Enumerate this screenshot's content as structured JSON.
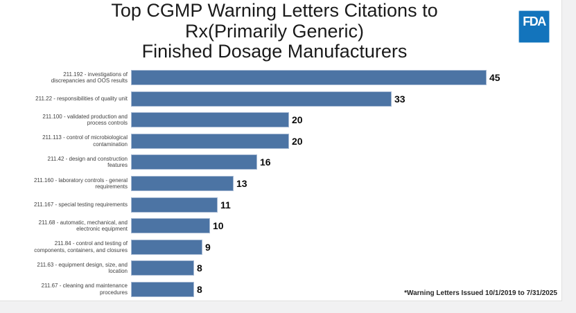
{
  "slide": {
    "title_lines": [
      "Top CGMP Warning Letters Citations to",
      "Rx(Primarily Generic)",
      "Finished Dosage Manufacturers"
    ],
    "footnote": "*Warning Letters Issued 10/1/2019 to 7/31/2025",
    "logo_text": "FDA",
    "colors": {
      "bar": "#4C74A4",
      "bar_border": "#a6b9d3",
      "logo_blue": "#1374bc",
      "slide_background": "#ffffff",
      "canvas_background": "#f1f1f2"
    }
  },
  "chart_data": {
    "type": "bar",
    "orientation": "horizontal",
    "title": "Top CGMP Warning Letters Citations to Rx(Primarily Generic) Finished Dosage Manufacturers",
    "xlabel": "",
    "ylabel": "",
    "xlim": [
      0,
      45
    ],
    "grid": false,
    "legend": false,
    "data_labels": true,
    "categories": [
      "211.192 - investigations of\ndiscrepancies and OOS results",
      "211.22 - responsibilities of quality unit",
      "211.100 - validated production and\nprocess controls",
      "211.113 - control of microbiological\ncontamination",
      "211.42 - design and construction\nfeatures",
      "211.160 - laboratory controls - general\nrequirements",
      "211.167 - special testing requirements",
      "211.68 - automatic, mechanical, and\nelectronic equipment",
      "211.84 - control and testing of\ncomponents, containers, and closures",
      "211.63 - equipment design, size, and\nlocation",
      "211.67 - cleaning and maintenance\nprocedures"
    ],
    "values": [
      45,
      33,
      20,
      20,
      16,
      13,
      11,
      10,
      9,
      8,
      8
    ]
  }
}
